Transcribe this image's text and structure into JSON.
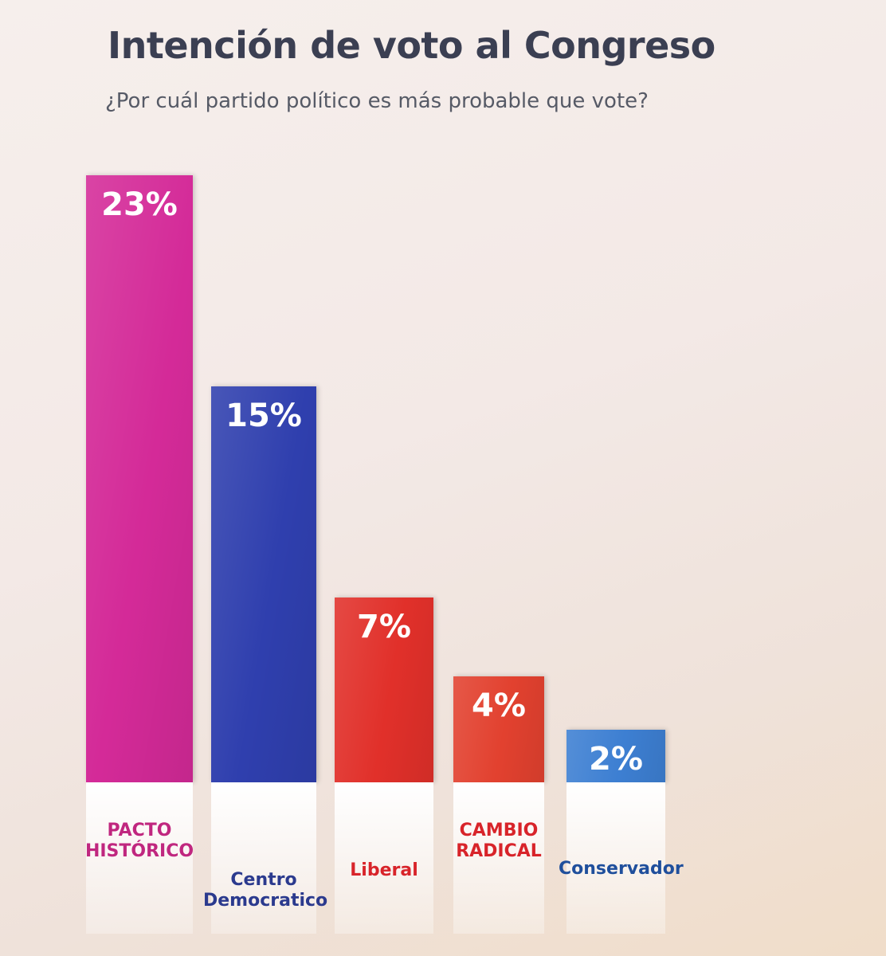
{
  "chart_data": {
    "type": "bar",
    "title": "Intención de voto al Congreso",
    "subtitle": "¿Por cuál partido político es más probable que vote?",
    "categories": [
      "PACTO HISTÓRICO",
      "Centro Democratico",
      "Liberal",
      "CAMBIO RADICAL",
      "Conservador"
    ],
    "values": [
      23,
      15,
      7,
      4,
      2
    ],
    "value_labels": [
      "23%",
      "15%",
      "7%",
      "4%",
      "2%"
    ],
    "colors": [
      "#d42a98",
      "#2f3fae",
      "#e1302a",
      "#e2412f",
      "#3d7fd2"
    ]
  }
}
